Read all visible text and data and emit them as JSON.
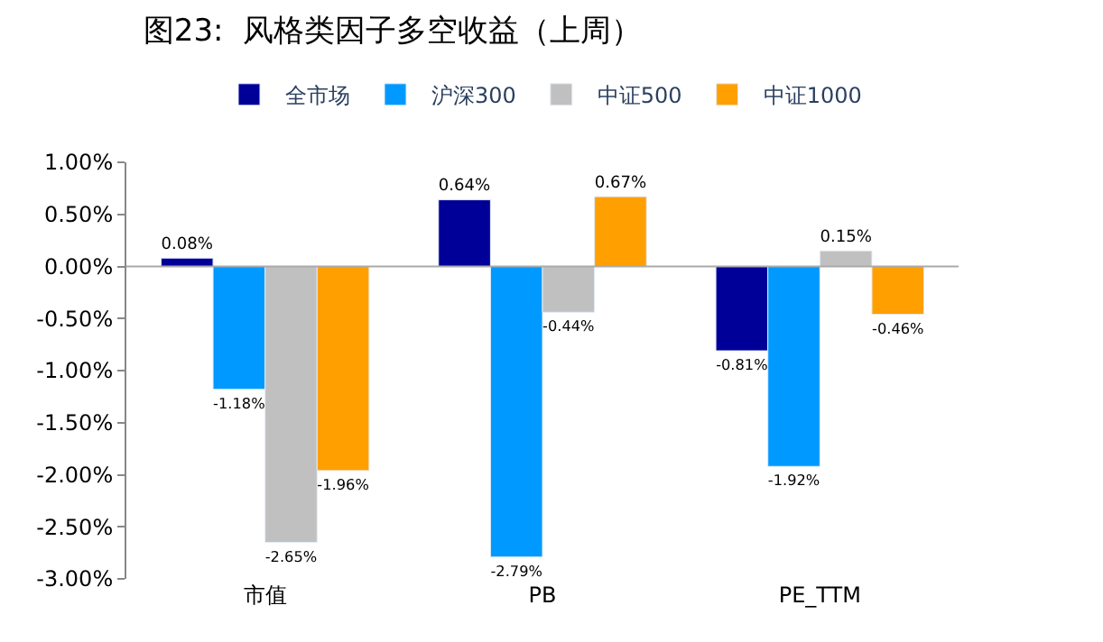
{
  "chart_data": {
    "type": "bar",
    "title": "图23:  风格类因子多空收益（上周）",
    "categories": [
      "市值",
      "PB",
      "PE_TTM"
    ],
    "series": [
      {
        "name": "全市场",
        "color": "#000099",
        "values": [
          0.08,
          0.64,
          -0.81
        ],
        "value_labels": [
          "0.08%",
          "0.64%",
          "-0.81%"
        ]
      },
      {
        "name": "沪深300",
        "color": "#0099ff",
        "values": [
          -1.18,
          -2.79,
          -1.92
        ],
        "value_labels": [
          "-1.18%",
          "-2.79%",
          "-1.92%"
        ]
      },
      {
        "name": "中证500",
        "color": "#c0c0c0",
        "values": [
          -2.65,
          -0.44,
          0.15
        ],
        "value_labels": [
          "-2.65%",
          "-0.44%",
          "0.15%"
        ]
      },
      {
        "name": "中证1000",
        "color": "#ffa000",
        "values": [
          -1.96,
          0.67,
          -0.46
        ],
        "value_labels": [
          "-1.96%",
          "0.67%",
          "-0.46%"
        ]
      }
    ],
    "ylim": [
      -3,
      1
    ],
    "yticks": [
      {
        "value": 1,
        "label": "1.00%"
      },
      {
        "value": 0.5,
        "label": "0.50%"
      },
      {
        "value": 0,
        "label": "0.00%"
      },
      {
        "value": -0.5,
        "label": "-0.50%"
      },
      {
        "value": -1,
        "label": "-1.00%"
      },
      {
        "value": -1.5,
        "label": "-1.50%"
      },
      {
        "value": -2,
        "label": "-2.00%"
      },
      {
        "value": -2.5,
        "label": "-2.50%"
      },
      {
        "value": -3,
        "label": "-3.00%"
      }
    ],
    "ref_lines": [
      {
        "axis": "y",
        "value": 0,
        "color": "#aaaaaa"
      }
    ],
    "grid": false,
    "legend": "top"
  }
}
